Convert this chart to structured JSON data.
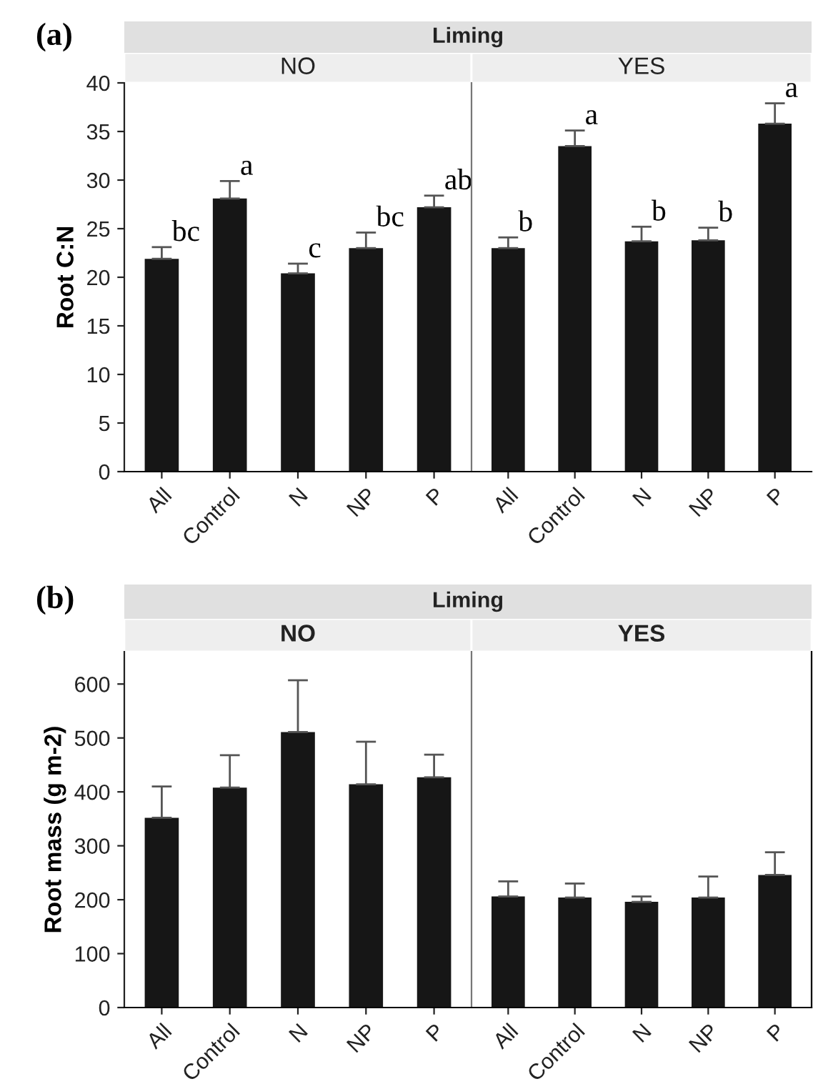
{
  "chart_data": [
    {
      "type": "bar",
      "title": "NO",
      "annotations": [
        "(a)",
        "Liming"
      ],
      "ylabel": "Root C:N",
      "categories": [
        "All",
        "Control",
        "N",
        "NP",
        "P"
      ],
      "color": "#161616",
      "values": [
        21.9,
        28.1,
        20.4,
        23.0,
        27.2
      ],
      "errors": [
        [
          21.9,
          23.1
        ],
        [
          28.1,
          29.9
        ],
        [
          20.4,
          21.4
        ],
        [
          23.0,
          24.6
        ],
        [
          27.2,
          28.4
        ]
      ],
      "value_labels": [
        "bc",
        "a",
        "c",
        "bc",
        "ab"
      ],
      "ylim": [
        0,
        40
      ],
      "yticks": [
        0,
        5,
        10,
        15,
        20,
        25,
        30,
        35,
        40
      ]
    },
    {
      "type": "bar",
      "title": "YES",
      "categories": [
        "All",
        "Control",
        "N",
        "NP",
        "P"
      ],
      "color": "#161616",
      "values": [
        23.0,
        33.5,
        23.7,
        23.8,
        35.8
      ],
      "errors": [
        [
          23.0,
          24.1
        ],
        [
          33.5,
          35.1
        ],
        [
          23.7,
          25.2
        ],
        [
          23.8,
          25.1
        ],
        [
          35.8,
          37.9
        ]
      ],
      "value_labels": [
        "b",
        "a",
        "b",
        "b",
        "a"
      ],
      "ylim": [
        0,
        40
      ],
      "yticks": [
        0,
        5,
        10,
        15,
        20,
        25,
        30,
        35,
        40
      ],
      "tick_labels": "x"
    },
    {
      "type": "bar",
      "title": "NO",
      "annotations": [
        "(b)",
        "Liming"
      ],
      "ylabel": "Root mass (g m-2)",
      "categories": [
        "All",
        "Control",
        "N",
        "NP",
        "P"
      ],
      "color": "#161616",
      "values": [
        352,
        408,
        511,
        414,
        427
      ],
      "errors": [
        [
          352,
          410
        ],
        [
          408,
          468
        ],
        [
          511,
          607
        ],
        [
          414,
          493
        ],
        [
          427,
          469
        ]
      ],
      "ylim": [
        0,
        660
      ],
      "yticks": [
        0,
        100,
        200,
        300,
        400,
        500,
        600
      ]
    },
    {
      "type": "bar",
      "title": "YES",
      "categories": [
        "All",
        "Control",
        "N",
        "NP",
        "P"
      ],
      "color": "#161616",
      "values": [
        206,
        204,
        196,
        204,
        246
      ],
      "errors": [
        [
          206,
          234
        ],
        [
          204,
          230
        ],
        [
          196,
          206
        ],
        [
          204,
          243
        ],
        [
          246,
          288
        ]
      ],
      "ylim": [
        0,
        660
      ],
      "yticks": [
        0,
        100,
        200,
        300,
        400,
        500,
        600
      ],
      "tick_labels": "x"
    }
  ]
}
